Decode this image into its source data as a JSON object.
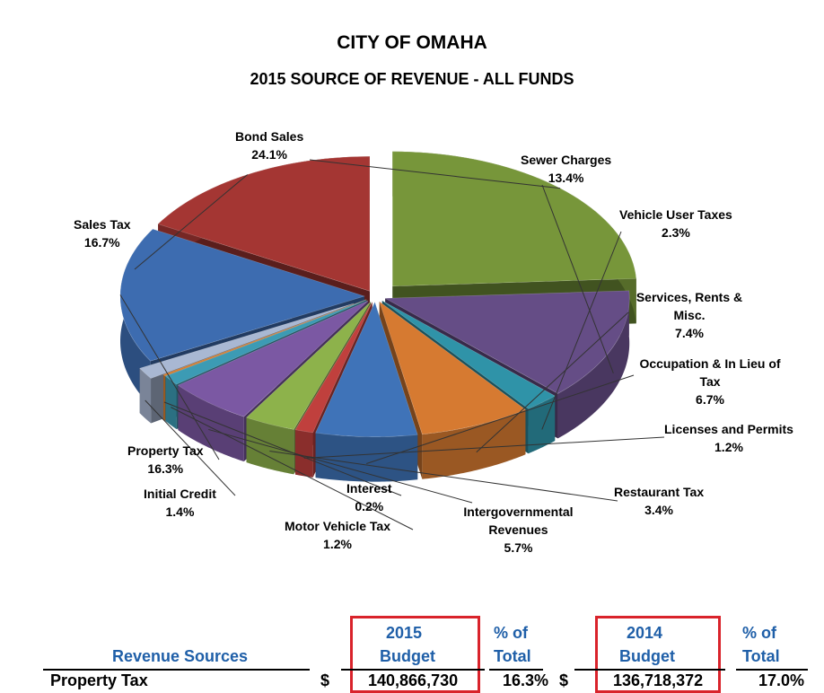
{
  "title": "CITY OF OMAHA",
  "subtitle": "2015 SOURCE OF REVENUE - ALL FUNDS",
  "chart_data": {
    "type": "pie",
    "title": "CITY OF OMAHA",
    "subtitle": "2015 SOURCE OF REVENUE - ALL FUNDS",
    "slices": [
      {
        "label": "Bond Sales",
        "value": 24.1,
        "value_label": "24.1%",
        "color": "#77963a"
      },
      {
        "label": "Sewer Charges",
        "value": 13.4,
        "value_label": "13.4%",
        "color": "#654d86"
      },
      {
        "label": "Vehicle User Taxes",
        "value": 2.3,
        "value_label": "2.3%",
        "color": "#2f93a8"
      },
      {
        "label": "Services, Rents & Misc.",
        "value": 7.4,
        "value_label": "7.4%",
        "color": "#d67a31"
      },
      {
        "label": "Occupation & In Lieu of Tax",
        "value": 6.7,
        "value_label": "6.7%",
        "color": "#3f73b8"
      },
      {
        "label": "Licenses and Permits",
        "value": 1.2,
        "value_label": "1.2%",
        "color": "#c0403d"
      },
      {
        "label": "Restaurant Tax",
        "value": 3.4,
        "value_label": "3.4%",
        "color": "#8db24b"
      },
      {
        "label": "Intergovernmental Revenues",
        "value": 5.7,
        "value_label": "5.7%",
        "color": "#7b58a3"
      },
      {
        "label": "Motor Vehicle Tax",
        "value": 1.2,
        "value_label": "1.2%",
        "color": "#3c9bb4"
      },
      {
        "label": "Interest",
        "value": 0.2,
        "value_label": "0.2%",
        "color": "#d67d2c"
      },
      {
        "label": "Initial Credit",
        "value": 1.4,
        "value_label": "1.4%",
        "color": "#a9b8d3"
      },
      {
        "label": "Property Tax",
        "value": 16.3,
        "value_label": "16.3%",
        "color": "#3d6cb0"
      },
      {
        "label": "Sales Tax",
        "value": 16.7,
        "value_label": "16.7%",
        "color": "#a43633"
      }
    ]
  },
  "table": {
    "col_2015_year": "2015",
    "col_2015_budget": "Budget",
    "col_pct_of": "% of",
    "col_pct_total": "Total",
    "col_2014_year": "2014",
    "col_2014_budget": "Budget",
    "col_revenue_sources": "Revenue Sources",
    "row_label": "Property Tax",
    "currency": "$",
    "budget_2015": "140,866,730",
    "pct_2015": "16.3%",
    "budget_2014": "136,718,372",
    "pct_2014": "17.0%"
  },
  "colors": {
    "header_blue": "#1f5fa8",
    "highlight_red": "#d9232b"
  }
}
